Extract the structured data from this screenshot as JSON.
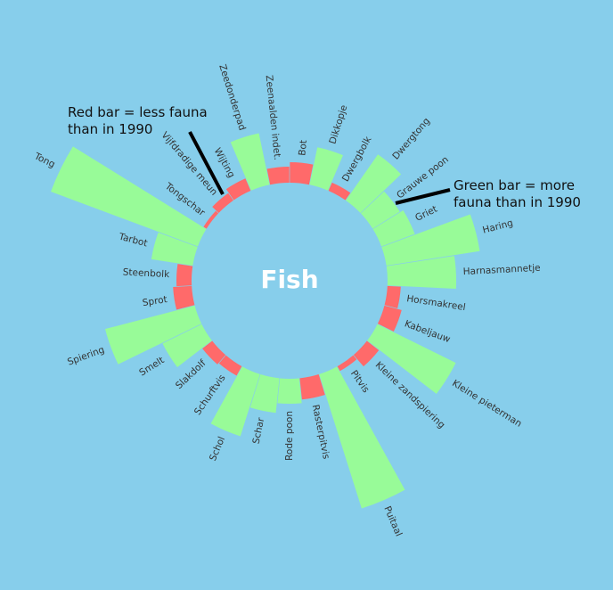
{
  "chart_data": {
    "type": "radial-bar",
    "center_label": "Fish",
    "categories": [
      "Bot",
      "Dikkopje",
      "Dwergbolk",
      "Dwergtong",
      "Grauwe poon",
      "Griet",
      "Haring",
      "Harnasmannetje",
      "Horsmakreel",
      "Kabeljauw",
      "Kleine pieterman",
      "Kleine zandspiering",
      "Pitvis",
      "Puitaal",
      "Rasterpitvis",
      "Rode poon",
      "Schar",
      "Schol",
      "Schurftvis",
      "Slakdolf",
      "Smelt",
      "Spiering",
      "Sprot",
      "Steenbolk",
      "Tarbot",
      "Tong",
      "Tongschar",
      "Vijfdradige meun",
      "Wijting",
      "Zeedonderpad",
      "Zeenaalden indet."
    ],
    "values": [
      -23,
      43,
      -10,
      63,
      36,
      40,
      106,
      77,
      -15,
      -20,
      98,
      -17,
      -6,
      158,
      -24,
      28,
      39,
      73,
      -12,
      -14,
      49,
      104,
      -21,
      -17,
      47,
      176,
      -4,
      -10,
      -15,
      59,
      -18
    ],
    "increase_color": "#98fb98",
    "decrease_color": "#ff6a6a",
    "annotations": [
      {
        "lines": [
          "Red bar = less fauna",
          "than in 1990"
        ]
      },
      {
        "lines": [
          "Green bar = more",
          "fauna than in 1990"
        ]
      }
    ]
  }
}
